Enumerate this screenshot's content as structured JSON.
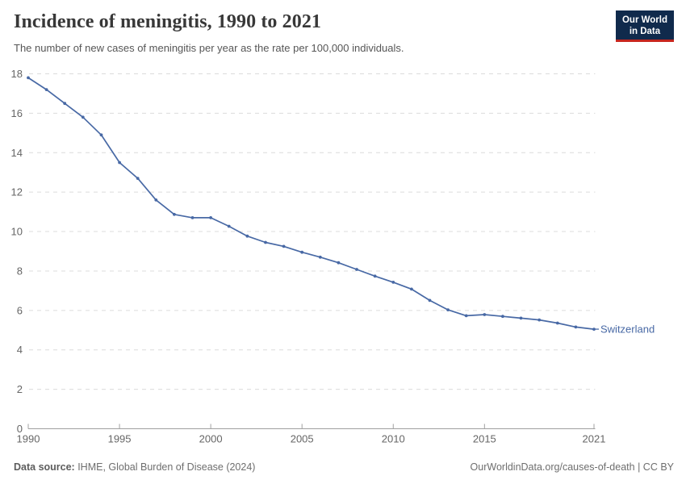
{
  "header": {
    "title": "Incidence of meningitis, 1990 to 2021",
    "subtitle": "The number of new cases of meningitis per year as the rate per 100,000 individuals."
  },
  "logo": {
    "line1": "Our World",
    "line2": "in Data",
    "bg_color": "#102a4c",
    "accent_color": "#c7261e"
  },
  "chart_data": {
    "type": "line",
    "title": "Incidence of meningitis, 1990 to 2021",
    "xlabel": "",
    "ylabel": "",
    "x": [
      1990,
      1991,
      1992,
      1993,
      1994,
      1995,
      1996,
      1997,
      1998,
      1999,
      2000,
      2001,
      2002,
      2003,
      2004,
      2005,
      2006,
      2007,
      2008,
      2009,
      2010,
      2011,
      2012,
      2013,
      2014,
      2015,
      2016,
      2017,
      2018,
      2019,
      2020,
      2021
    ],
    "series": [
      {
        "name": "Switzerland",
        "color": "#4869a5",
        "values": [
          17.8,
          17.2,
          16.5,
          15.8,
          14.9,
          13.5,
          12.7,
          11.6,
          10.87,
          10.7,
          10.7,
          10.27,
          9.77,
          9.45,
          9.25,
          8.95,
          8.7,
          8.42,
          8.08,
          7.74,
          7.43,
          7.08,
          6.51,
          6.03,
          5.73,
          5.79,
          5.7,
          5.61,
          5.52,
          5.36,
          5.16,
          5.05
        ]
      }
    ],
    "ylim": [
      0,
      18
    ],
    "yticks": [
      0,
      2,
      4,
      6,
      8,
      10,
      12,
      14,
      16,
      18
    ],
    "xticks": [
      1990,
      1995,
      2000,
      2005,
      2010,
      2015,
      2021
    ],
    "grid": "horizontal-dashed",
    "legend_position": "end-of-line-label",
    "colors": {
      "grid": "#dcdcdc",
      "axis": "#a0a0a0",
      "tick_text": "#666666"
    }
  },
  "footer": {
    "source_label": "Data source:",
    "source_text": " IHME, Global Burden of Disease (2024)",
    "link": "OurWorldinData.org/causes-of-death",
    "license": " | CC BY"
  }
}
